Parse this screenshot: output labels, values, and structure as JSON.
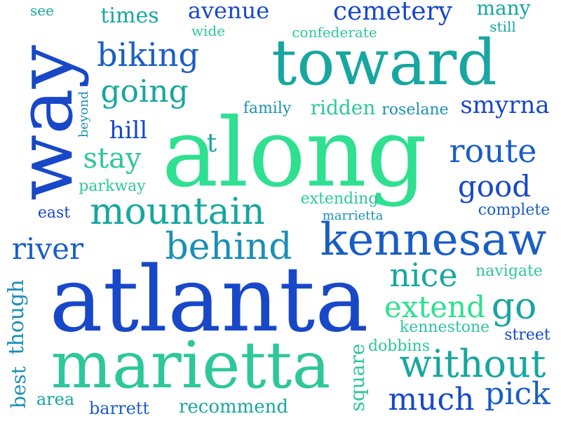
{
  "words": [
    {
      "text": "see",
      "color": "#17a6a0"
    },
    {
      "text": "times",
      "color": "#17a6a0"
    },
    {
      "text": "avenue",
      "color": "#1848c8"
    },
    {
      "text": "cemetery",
      "color": "#1848c8"
    },
    {
      "text": "many",
      "color": "#17a6a0"
    },
    {
      "text": "wide",
      "color": "#2ec79a"
    },
    {
      "text": "confederate",
      "color": "#2ec79a"
    },
    {
      "text": "still",
      "color": "#17a6a0"
    },
    {
      "text": "way",
      "color": "#1848c8"
    },
    {
      "text": "biking",
      "color": "#1a5ec4"
    },
    {
      "text": "toward",
      "color": "#17a6a0"
    },
    {
      "text": "going",
      "color": "#17a6a0"
    },
    {
      "text": "beyond",
      "color": "#1c8fb6"
    },
    {
      "text": "family",
      "color": "#1c8fb6"
    },
    {
      "text": "ridden",
      "color": "#2ec79a"
    },
    {
      "text": "roselane",
      "color": "#1c8fb6"
    },
    {
      "text": "smyrna",
      "color": "#1848c8"
    },
    {
      "text": "hill",
      "color": "#1848c8"
    },
    {
      "text": "along",
      "color": "#2ee08f"
    },
    {
      "text": "t",
      "color": "#17a6a0"
    },
    {
      "text": "route",
      "color": "#1a5ec4"
    },
    {
      "text": "stay",
      "color": "#2ec79a"
    },
    {
      "text": "good",
      "color": "#1848c8"
    },
    {
      "text": "parkway",
      "color": "#2ec79a"
    },
    {
      "text": "mountain",
      "color": "#17a6a0"
    },
    {
      "text": "extending",
      "color": "#2ec79a"
    },
    {
      "text": "east",
      "color": "#1848c8"
    },
    {
      "text": "complete",
      "color": "#1a5ec4"
    },
    {
      "text": "marrietta",
      "color": "#1c8fb6"
    },
    {
      "text": "kennesaw",
      "color": "#1a5ec4"
    },
    {
      "text": "river",
      "color": "#1a5ec4"
    },
    {
      "text": "behind",
      "color": "#1c8fb6"
    },
    {
      "text": "nice",
      "color": "#17a6a0"
    },
    {
      "text": "navigate",
      "color": "#2ec79a"
    },
    {
      "text": "atlanta",
      "color": "#1848c8"
    },
    {
      "text": "though",
      "color": "#1c8fb6"
    },
    {
      "text": "extend",
      "color": "#2ee08f"
    },
    {
      "text": "go",
      "color": "#17a6a0"
    },
    {
      "text": "kennestone",
      "color": "#2ec79a"
    },
    {
      "text": "street",
      "color": "#1848c8"
    },
    {
      "text": "best",
      "color": "#1c8fb6"
    },
    {
      "text": "dobbins",
      "color": "#2ec79a"
    },
    {
      "text": "square",
      "color": "#2ec79a"
    },
    {
      "text": "marietta",
      "color": "#2ec79a"
    },
    {
      "text": "without",
      "color": "#17a6a0"
    },
    {
      "text": "area",
      "color": "#17a6a0"
    },
    {
      "text": "much",
      "color": "#1848c8"
    },
    {
      "text": "pick",
      "color": "#1a5ec4"
    },
    {
      "text": "barrett",
      "color": "#1a5ec4"
    },
    {
      "text": "recommend",
      "color": "#17a6a0"
    }
  ]
}
